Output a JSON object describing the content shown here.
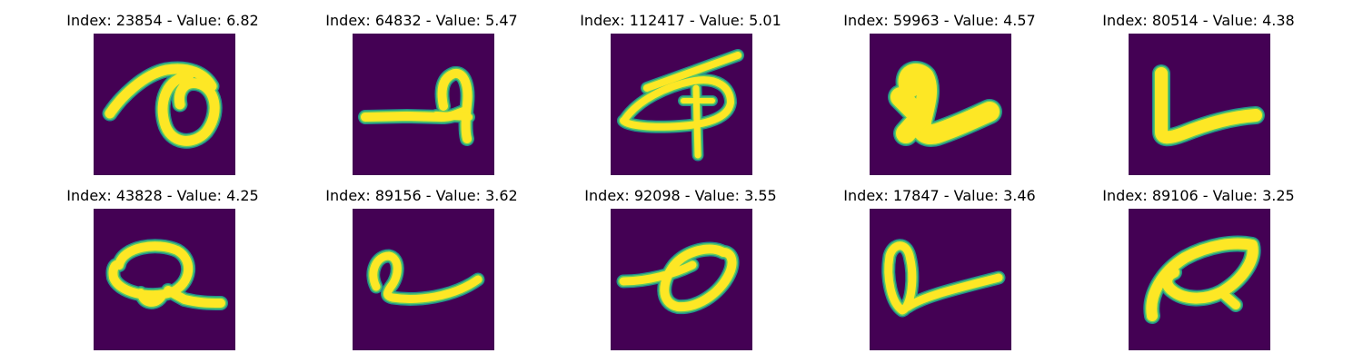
{
  "colors": {
    "background": "#440154",
    "stroke_edge": "#21918c",
    "stroke_mid": "#5ec962",
    "stroke_core": "#fde725"
  },
  "panels": [
    {
      "index": "23854",
      "value": "6.82",
      "title": "Index: 23854 - Value: 6.82",
      "glyph": "curl"
    },
    {
      "index": "64832",
      "value": "5.47",
      "title": "Index: 64832 - Value: 5.47",
      "glyph": "hook-line"
    },
    {
      "index": "112417",
      "value": "5.01",
      "title": "Index: 112417 - Value: 5.01",
      "glyph": "eye-cross"
    },
    {
      "index": "59963",
      "value": "4.57",
      "title": "Index: 59963 - Value: 4.57",
      "glyph": "blob-v"
    },
    {
      "index": "80514",
      "value": "4.38",
      "title": "Index: 80514 - Value: 4.38",
      "glyph": "letter-l"
    },
    {
      "index": "43828",
      "value": "4.25",
      "title": "Index: 43828 - Value: 4.25",
      "glyph": "loop-tail"
    },
    {
      "index": "89156",
      "value": "3.62",
      "title": "Index: 89156 - Value: 3.62",
      "glyph": "small-loop-tail"
    },
    {
      "index": "92098",
      "value": "3.55",
      "title": "Index: 92098 - Value: 3.55",
      "glyph": "slanted-loop"
    },
    {
      "index": "17847",
      "value": "3.46",
      "title": "Index: 17847 - Value: 3.46",
      "glyph": "tall-loop-tail"
    },
    {
      "index": "89106",
      "value": "3.25",
      "title": "Index: 89106 - Value: 3.25",
      "glyph": "leaf"
    }
  ]
}
